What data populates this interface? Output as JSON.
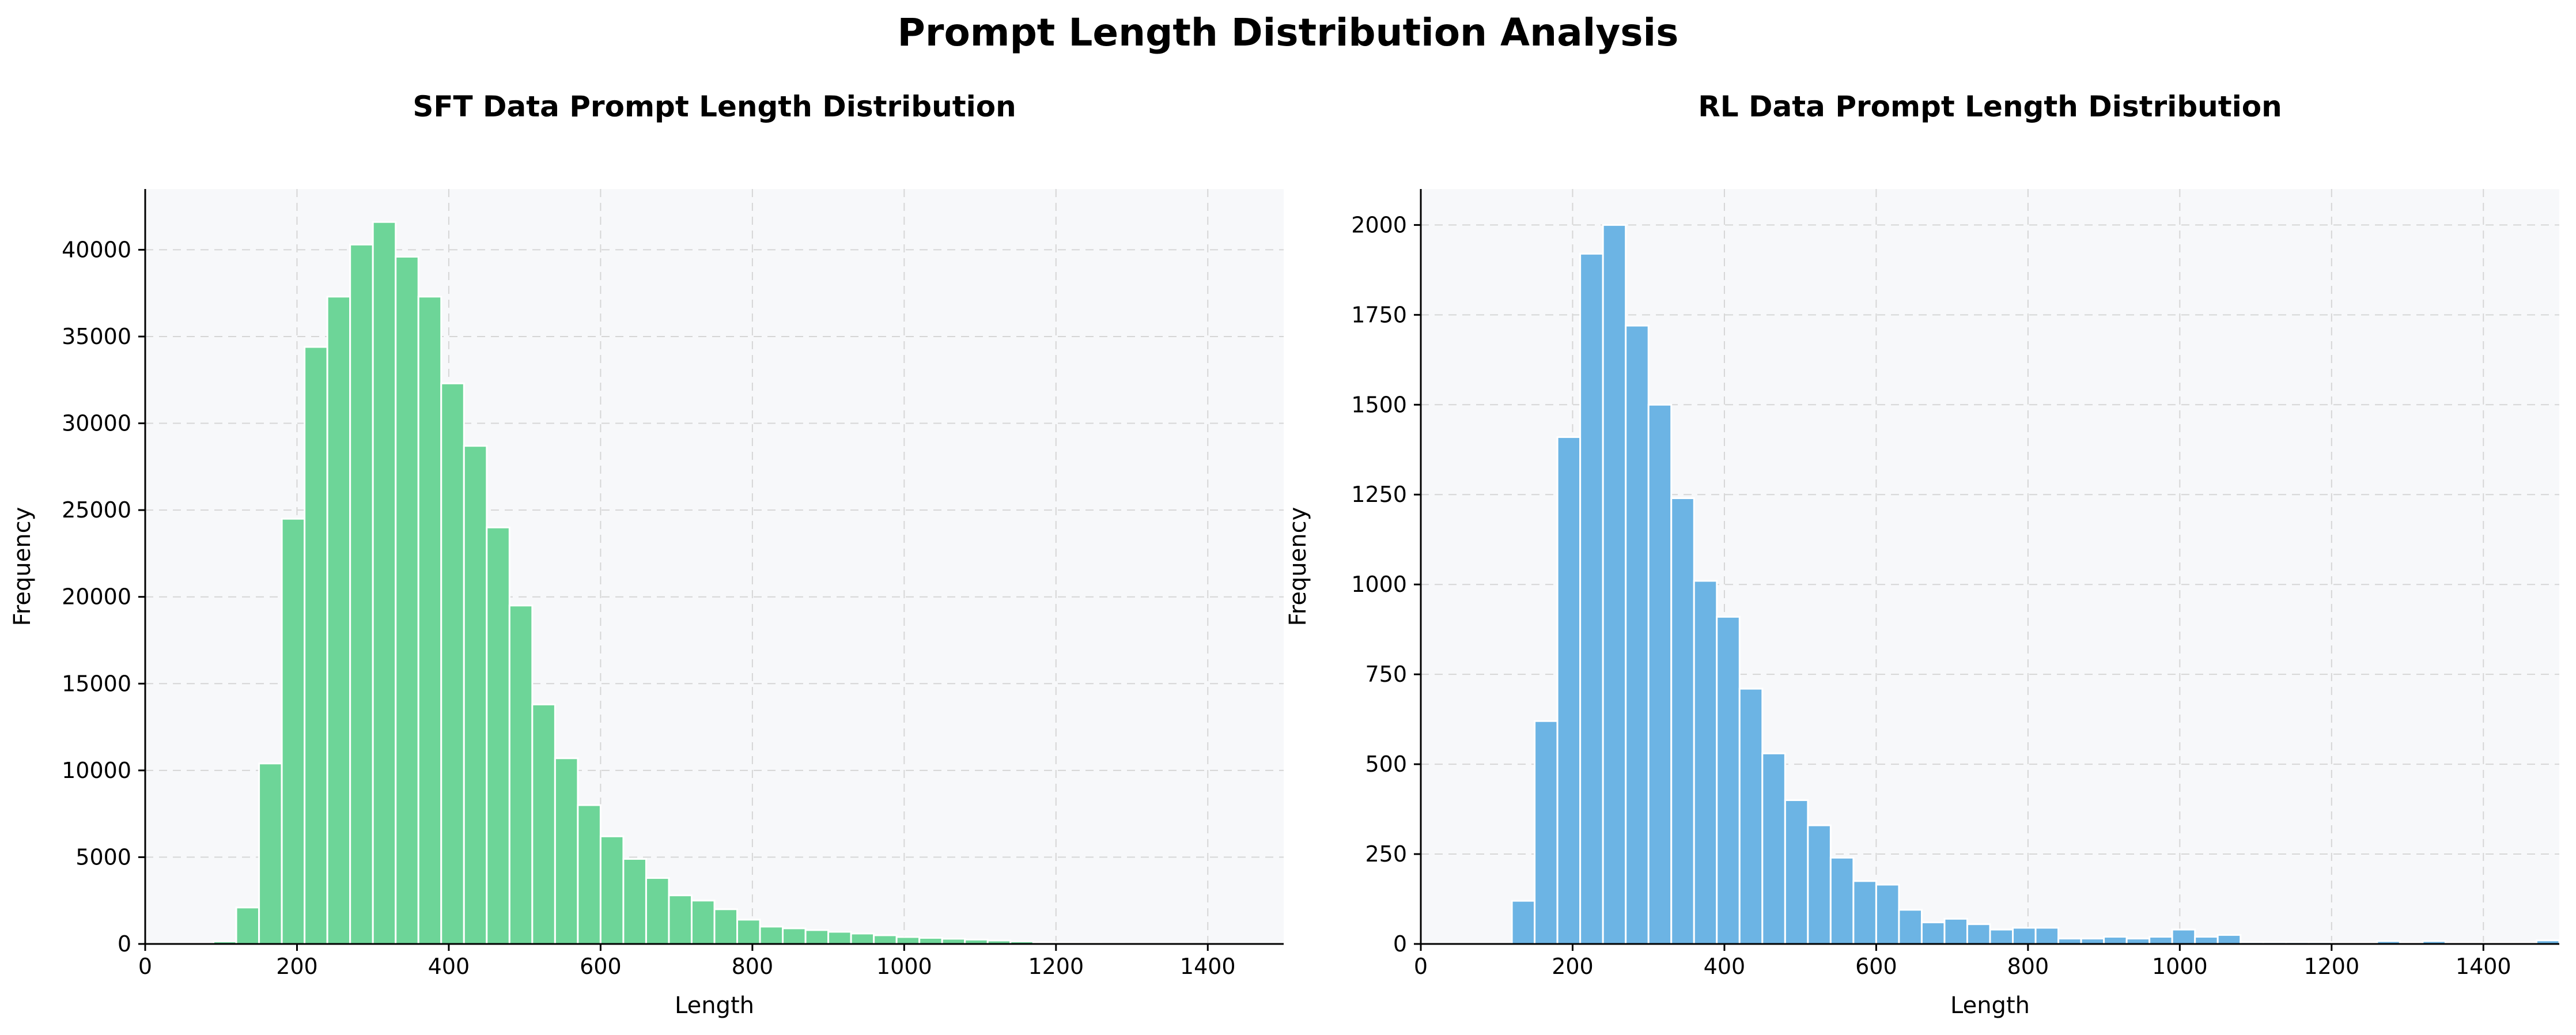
{
  "suptitle": "Prompt Length Distribution Analysis",
  "chart_data": [
    {
      "type": "bar",
      "title": "SFT Data Prompt Length Distribution",
      "xlabel": "Length",
      "ylabel": "Frequency",
      "xlim": [
        0,
        1500
      ],
      "ylim": [
        0,
        43500
      ],
      "xticks": [
        0,
        200,
        400,
        600,
        800,
        1000,
        1200,
        1400
      ],
      "yticks": [
        0,
        5000,
        10000,
        15000,
        20000,
        25000,
        30000,
        35000,
        40000
      ],
      "grid": true,
      "color": "#6dd598",
      "bin_edges": [
        60,
        90,
        120,
        150,
        180,
        210,
        240,
        270,
        300,
        330,
        360,
        390,
        420,
        450,
        480,
        510,
        540,
        570,
        600,
        630,
        660,
        690,
        720,
        750,
        780,
        810,
        840,
        870,
        900,
        930,
        960,
        990,
        1020,
        1050,
        1080,
        1110,
        1140,
        1170,
        1200,
        1230,
        1260,
        1290,
        1320,
        1350,
        1380,
        1410,
        1440
      ],
      "values": [
        20,
        150,
        2100,
        10400,
        24500,
        34400,
        37300,
        40300,
        41600,
        39600,
        37300,
        32300,
        28700,
        24000,
        19500,
        13800,
        10700,
        8000,
        6200,
        4900,
        3800,
        2800,
        2500,
        2000,
        1400,
        1000,
        900,
        800,
        700,
        600,
        500,
        400,
        350,
        300,
        250,
        200,
        150,
        100,
        70,
        50,
        30,
        20,
        15,
        10,
        5,
        5
      ]
    },
    {
      "type": "bar",
      "title": "RL Data Prompt Length Distribution",
      "xlabel": "Length",
      "ylabel": "Frequency",
      "xlim": [
        0,
        1500
      ],
      "ylim": [
        0,
        2100
      ],
      "xticks": [
        0,
        200,
        400,
        600,
        800,
        1000,
        1200,
        1400
      ],
      "yticks": [
        0,
        250,
        500,
        750,
        1000,
        1250,
        1500,
        1750,
        2000
      ],
      "grid": true,
      "color": "#6cb4e4",
      "bin_edges": [
        120,
        150,
        180,
        210,
        240,
        270,
        300,
        330,
        360,
        390,
        420,
        450,
        480,
        510,
        540,
        570,
        600,
        630,
        660,
        690,
        720,
        750,
        780,
        810,
        840,
        870,
        900,
        930,
        960,
        990,
        1020,
        1050,
        1080,
        1110,
        1140,
        1170,
        1200,
        1230,
        1260,
        1290,
        1320,
        1350,
        1380,
        1410,
        1440,
        1470,
        1500
      ],
      "values": [
        120,
        620,
        1410,
        1920,
        2000,
        1720,
        1500,
        1240,
        1010,
        910,
        710,
        530,
        400,
        330,
        240,
        175,
        165,
        95,
        60,
        70,
        55,
        40,
        45,
        45,
        15,
        15,
        20,
        15,
        20,
        40,
        20,
        25,
        5,
        5,
        5,
        5,
        3,
        3,
        8,
        3,
        8,
        3,
        3,
        3,
        3,
        10
      ]
    }
  ]
}
